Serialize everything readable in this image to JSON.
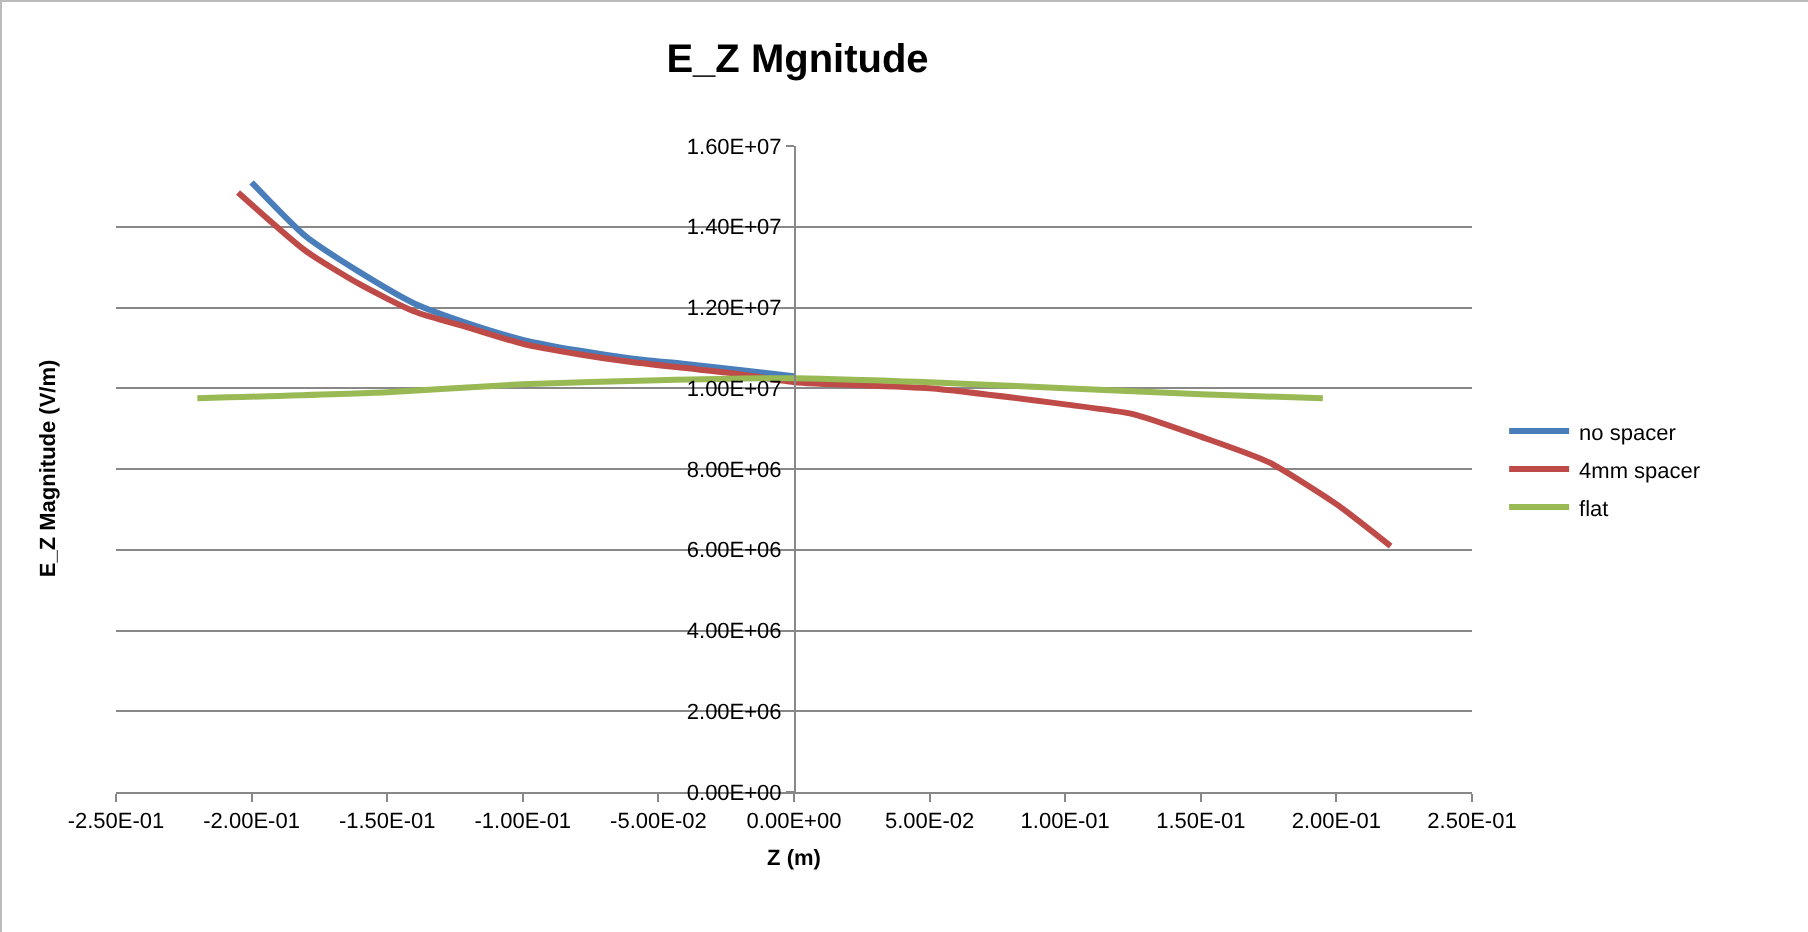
{
  "chart_data": {
    "type": "line",
    "title": "E_Z Mgnitude",
    "xlabel": "Z (m)",
    "ylabel": "E_Z Magnitude (V/m)",
    "series": [
      {
        "name": "no spacer",
        "color": "#4a7ebb",
        "x": [
          -0.2,
          -0.18,
          -0.16,
          -0.14,
          -0.12,
          -0.1,
          -0.08,
          -0.06,
          -0.04,
          -0.02,
          0
        ],
        "values": [
          15100000,
          13760000,
          12870000,
          12100000,
          11600000,
          11200000,
          10940000,
          10740000,
          10600000,
          10450000,
          10300000
        ]
      },
      {
        "name": "4mm spacer",
        "color": "#be4b48",
        "x": [
          -0.205,
          -0.18,
          -0.16,
          -0.14,
          -0.12,
          -0.1,
          -0.08,
          -0.06,
          -0.04,
          -0.02,
          0,
          0.05,
          0.1,
          0.125,
          0.15,
          0.175,
          0.2,
          0.22
        ],
        "values": [
          14850000,
          13400000,
          12570000,
          11900000,
          11500000,
          11100000,
          10850000,
          10650000,
          10500000,
          10350000,
          10150000,
          10000000,
          9600000,
          9360000,
          8800000,
          8170000,
          7130000,
          6090000
        ]
      },
      {
        "name": "flat",
        "color": "#98b954",
        "x": [
          -0.22,
          -0.15,
          -0.1,
          -0.05,
          0,
          0.05,
          0.1,
          0.15,
          0.195
        ],
        "values": [
          9750000,
          9900000,
          10100000,
          10200000,
          10250000,
          10150000,
          10000000,
          9850000,
          9750000
        ]
      }
    ],
    "xlim": [
      -0.25,
      0.25
    ],
    "xticks": [
      {
        "value": -0.25,
        "label": "-2.50E-01"
      },
      {
        "value": -0.2,
        "label": "-2.00E-01"
      },
      {
        "value": -0.15,
        "label": "-1.50E-01"
      },
      {
        "value": -0.1,
        "label": "-1.00E-01"
      },
      {
        "value": -0.05,
        "label": "-5.00E-02"
      },
      {
        "value": 0,
        "label": "0.00E+00"
      },
      {
        "value": 0.05,
        "label": "5.00E-02"
      },
      {
        "value": 0.1,
        "label": "1.00E-01"
      },
      {
        "value": 0.15,
        "label": "1.50E-01"
      },
      {
        "value": 0.2,
        "label": "2.00E-01"
      },
      {
        "value": 0.25,
        "label": "2.50E-01"
      }
    ],
    "ylim": [
      0,
      16000000
    ],
    "yticks": [
      {
        "value": 0,
        "label": "0.00E+00"
      },
      {
        "value": 2000000,
        "label": "2.00E+06"
      },
      {
        "value": 4000000,
        "label": "4.00E+06"
      },
      {
        "value": 6000000,
        "label": "6.00E+06"
      },
      {
        "value": 8000000,
        "label": "8.00E+06"
      },
      {
        "value": 10000000,
        "label": "1.00E+07"
      },
      {
        "value": 12000000,
        "label": "1.20E+07"
      },
      {
        "value": 14000000,
        "label": "1.40E+07"
      },
      {
        "value": 16000000,
        "label": "1.60E+07"
      }
    ],
    "grid": "y",
    "legend": "right",
    "marker": "none",
    "line_style": "solid"
  }
}
